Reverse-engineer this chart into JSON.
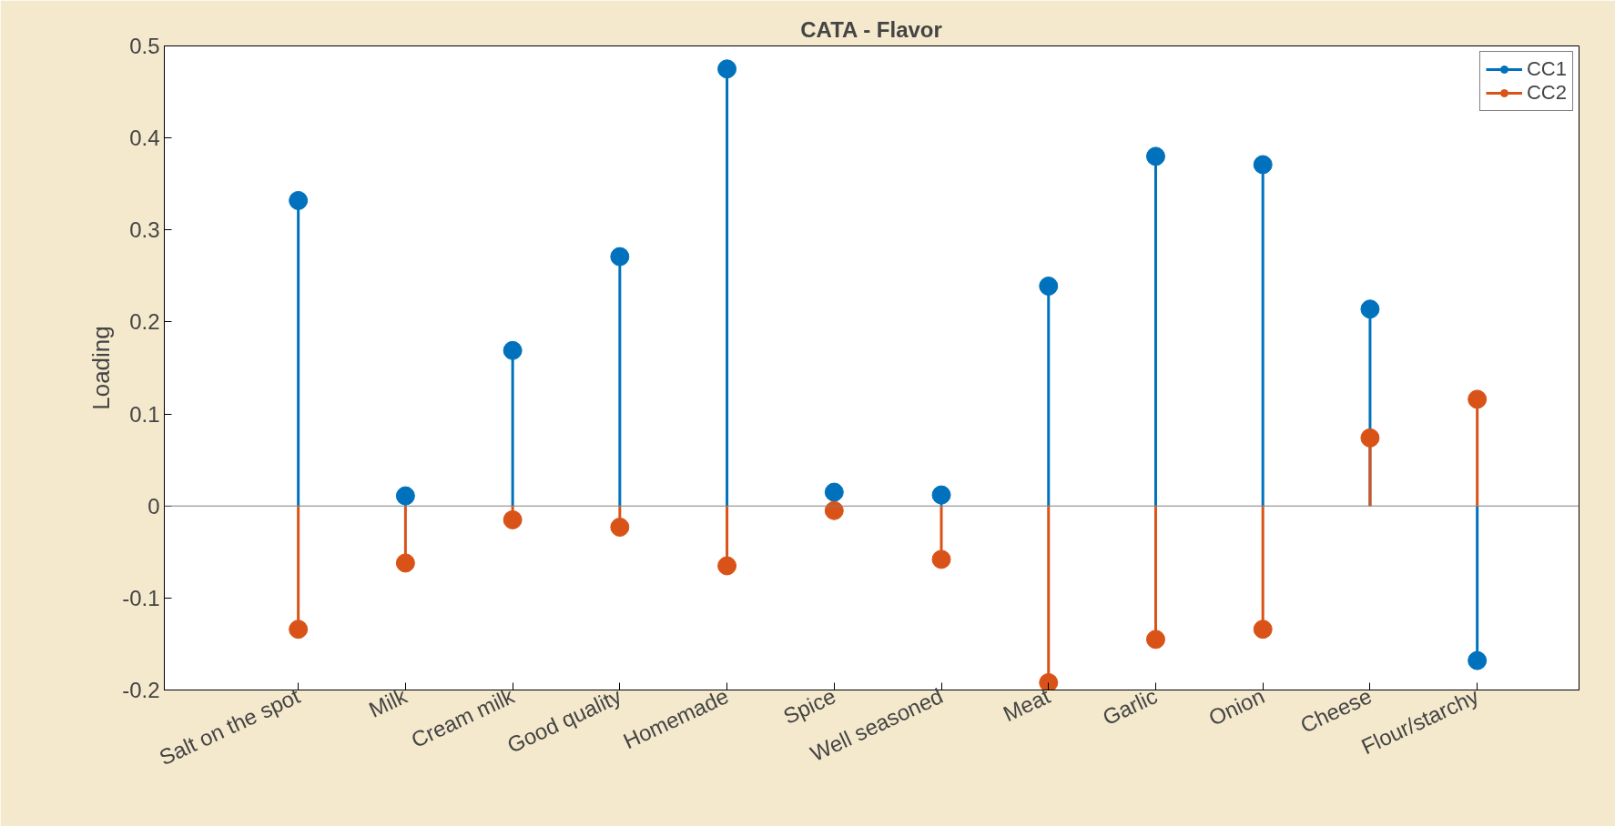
{
  "chart_data": {
    "type": "lollipop",
    "title": "CATA - Flavor",
    "ylabel": "Loading",
    "categories": [
      "Salt on the spot",
      "Milk",
      "Cream milk",
      "Good quality",
      "Homemade",
      "Spice",
      "Well seasoned",
      "Meat",
      "Garlic",
      "Onion",
      "Cheese",
      "Flour/starchy"
    ],
    "series": [
      {
        "name": "CC1",
        "color": "#0072bd",
        "values": [
          0.332,
          0.011,
          0.169,
          0.271,
          0.475,
          0.015,
          0.012,
          0.239,
          0.38,
          0.371,
          0.214,
          -0.168
        ]
      },
      {
        "name": "CC2",
        "color": "#d95319",
        "values": [
          -0.134,
          -0.062,
          -0.015,
          -0.023,
          -0.065,
          -0.005,
          -0.058,
          -0.192,
          -0.145,
          -0.134,
          0.074,
          0.116
        ]
      }
    ],
    "ylim": [
      -0.2,
      0.5
    ],
    "yticks": [
      -0.2,
      -0.1,
      0,
      0.1,
      0.2,
      0.3,
      0.4,
      0.5
    ],
    "ref_lines": [
      {
        "axis": "y",
        "value": 0,
        "color": "#808080"
      }
    ],
    "marker": "circle",
    "grid": false,
    "legend": "top right"
  }
}
